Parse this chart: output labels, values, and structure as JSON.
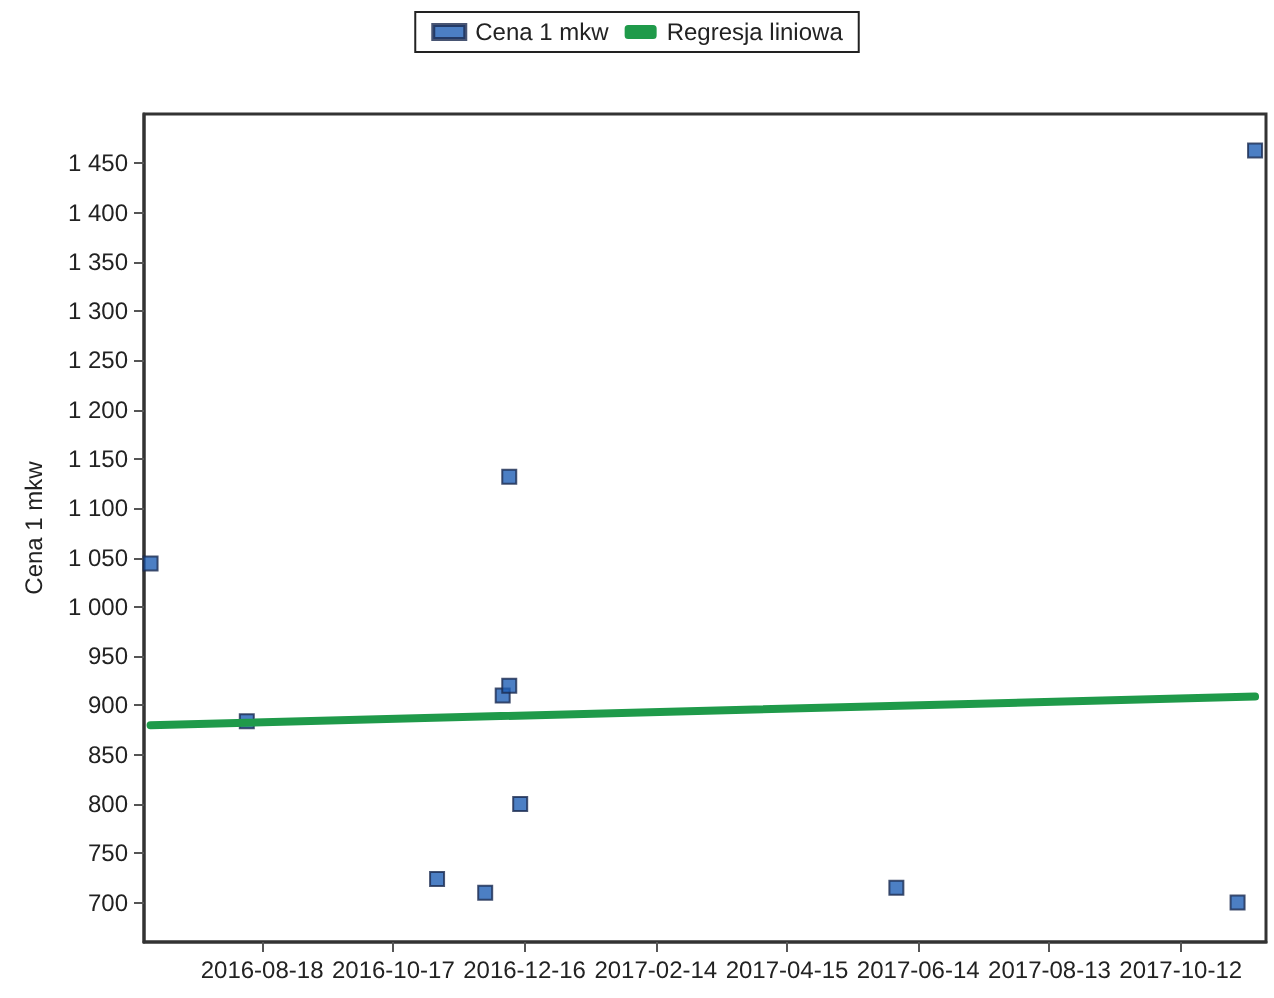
{
  "chart_data": {
    "type": "scatter",
    "ylabel": "Cena 1 mkw",
    "xlim": [
      "2016-06-25",
      "2017-11-20"
    ],
    "xticks": [
      "2016-08-18",
      "2016-10-17",
      "2016-12-16",
      "2017-02-14",
      "2017-04-15",
      "2017-06-14",
      "2017-08-13",
      "2017-10-12"
    ],
    "ylim": [
      660,
      1500
    ],
    "yticks": [
      700,
      750,
      800,
      850,
      900,
      950,
      {
        "value": 1000,
        "label": "1 000"
      },
      {
        "value": 1050,
        "label": "1 050"
      },
      {
        "value": 1100,
        "label": "1 100"
      },
      {
        "value": 1150,
        "label": "1 150"
      },
      {
        "value": 1200,
        "label": "1 200"
      },
      {
        "value": 1250,
        "label": "1 250"
      },
      {
        "value": 1300,
        "label": "1 300"
      },
      {
        "value": 1350,
        "label": "1 350"
      },
      {
        "value": 1400,
        "label": "1 400"
      },
      {
        "value": 1450,
        "label": "1 450"
      }
    ],
    "series": [
      {
        "name": "Cena 1 mkw",
        "type": "scatter",
        "color": "#1f5fb5",
        "marker": "square",
        "x": [
          "2016-06-28",
          "2016-08-11",
          "2016-11-06",
          "2016-11-28",
          "2016-12-06",
          "2016-12-09",
          "2016-12-09",
          "2016-12-14",
          "2017-06-04",
          "2017-11-07",
          "2017-11-15"
        ],
        "values": [
          1044,
          884,
          724,
          710,
          910,
          920,
          1132,
          800,
          715,
          700,
          1463
        ]
      },
      {
        "name": "Regresja liniowa",
        "type": "line",
        "color": "#1f9a4a",
        "marker": "none",
        "x": [
          "2016-06-28",
          "2017-11-15"
        ],
        "values": [
          880,
          909
        ]
      }
    ],
    "legend": "top",
    "grid": false
  }
}
